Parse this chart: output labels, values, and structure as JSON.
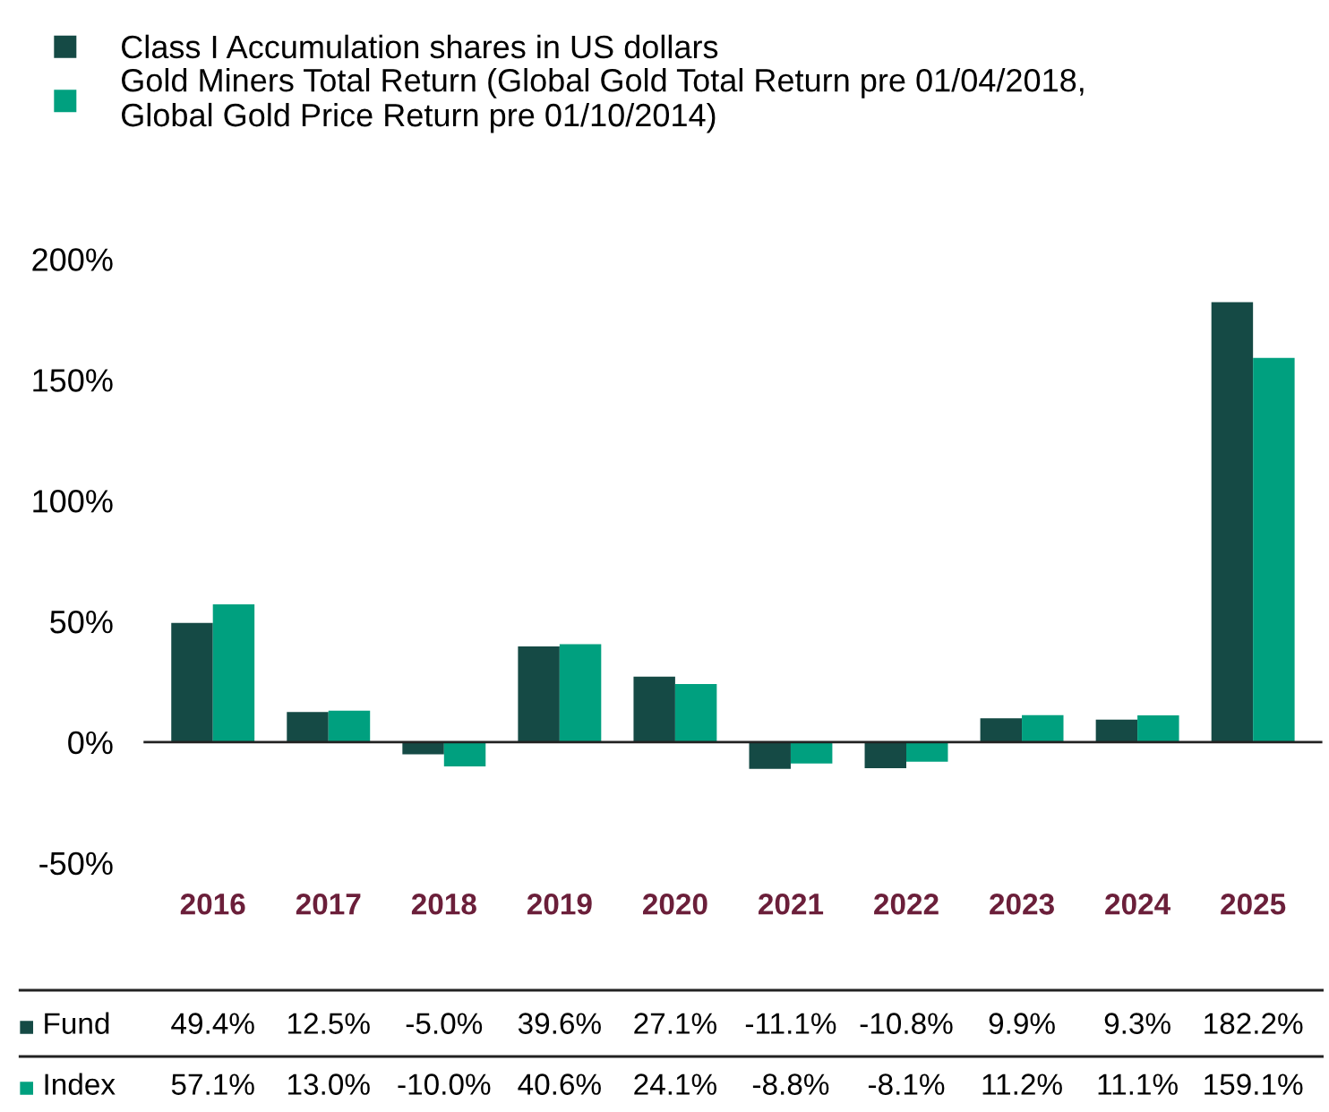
{
  "chart_data": {
    "type": "bar",
    "categories": [
      "2016",
      "2017",
      "2018",
      "2019",
      "2020",
      "2021",
      "2022",
      "2023",
      "2024",
      "2025"
    ],
    "series": [
      {
        "name": "Class I Accumulation shares in US dollars",
        "color": "#154a45",
        "values": [
          49.4,
          12.5,
          -5.0,
          39.6,
          27.1,
          -11.1,
          -10.8,
          9.9,
          9.3,
          182.2
        ],
        "value_labels": [
          "49.4%",
          "12.5%",
          "-5.0%",
          "39.6%",
          "27.1%",
          "-11.1%",
          "-10.8%",
          "9.9%",
          "9.3%",
          "182.2%"
        ]
      },
      {
        "name": "Gold Miners Total Return (Global Gold Total Return pre 01/04/2018,\nGlobal Gold Price Return pre 01/10/2014)",
        "color": "#00a07f",
        "values": [
          57.1,
          13.0,
          -10.0,
          40.6,
          24.1,
          -8.8,
          -8.1,
          11.2,
          11.1,
          159.1
        ],
        "value_labels": [
          "57.1%",
          "13.0%",
          "-10.0%",
          "40.6%",
          "24.1%",
          "-8.8%",
          "-8.1%",
          "11.2%",
          "11.1%",
          "159.1%"
        ]
      }
    ],
    "annotations": [
      "Fund",
      "Index"
    ],
    "ylim": [
      -50,
      200
    ],
    "yticks": [
      {
        "value": -50,
        "label": "-50%"
      },
      {
        "value": 0,
        "label": "0%"
      },
      {
        "value": 50,
        "label": "50%"
      },
      {
        "value": 100,
        "label": "100%"
      },
      {
        "value": 150,
        "label": "150%"
      },
      {
        "value": 200,
        "label": "200%"
      }
    ],
    "grid": false,
    "ref_lines": [
      {
        "axis": "y",
        "value": 0,
        "color": "#222222"
      }
    ],
    "legend": "top left"
  }
}
